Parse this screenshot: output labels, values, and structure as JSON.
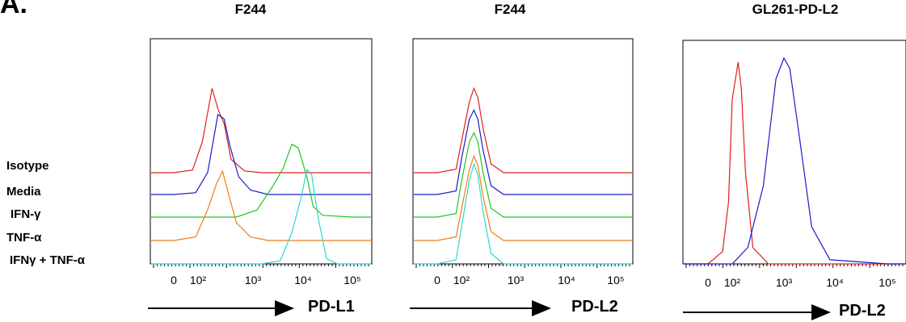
{
  "panel_label": "A.",
  "legend": [
    "Isotype",
    "Media",
    "IFN-γ",
    "TNF-α",
    "IFNγ + TNF-α"
  ],
  "colors": {
    "isotype": "#e0201c",
    "media": "#1a1acc",
    "ifng": "#22c422",
    "tnfa": "#ee7d16",
    "ifng_tnfa": "#2fd8d2",
    "axis": "#000000"
  },
  "chart_data": [
    {
      "type": "line",
      "title": "F244",
      "xlabel": "PD-L1",
      "x_scale": "log",
      "x_tick_labels": [
        "0",
        "10²",
        "10³",
        "10⁴",
        "10⁵"
      ],
      "grid": false,
      "series": [
        {
          "name": "Isotype",
          "x": [
            10,
            60,
            120,
            180,
            230,
            300,
            400,
            700,
            1500,
            100000
          ],
          "y": [
            0,
            0.03,
            0.35,
            0.95,
            0.72,
            0.55,
            0.15,
            0.02,
            0,
            0
          ]
        },
        {
          "name": "Media",
          "x": [
            10,
            80,
            150,
            230,
            300,
            380,
            550,
            900,
            2000,
            100000
          ],
          "y": [
            0,
            0.02,
            0.25,
            0.9,
            0.85,
            0.55,
            0.2,
            0.05,
            0,
            0
          ]
        },
        {
          "name": "IFN-γ",
          "x": [
            500,
            1200,
            2500,
            4000,
            6000,
            8000,
            12000,
            16000,
            25000,
            100000
          ],
          "y": [
            0,
            0.08,
            0.35,
            0.55,
            0.82,
            0.78,
            0.45,
            0.12,
            0.02,
            0
          ]
        },
        {
          "name": "TNF-α",
          "x": [
            10,
            80,
            150,
            220,
            280,
            350,
            500,
            900,
            2000,
            100000
          ],
          "y": [
            0,
            0.04,
            0.35,
            0.65,
            0.78,
            0.55,
            0.2,
            0.04,
            0,
            0
          ]
        },
        {
          "name": "IFNγ + TNF-α",
          "x": [
            1500,
            3500,
            6000,
            9000,
            12000,
            15000,
            20000,
            30000,
            50000,
            100000
          ],
          "y": [
            0,
            0.03,
            0.3,
            0.62,
            0.9,
            0.85,
            0.45,
            0.05,
            0,
            0
          ]
        }
      ]
    },
    {
      "type": "line",
      "title": "F244",
      "xlabel": "PD-L2",
      "x_scale": "log",
      "x_tick_labels": [
        "0",
        "10²",
        "10³",
        "10⁴",
        "10⁵"
      ],
      "grid": false,
      "series": [
        {
          "name": "Isotype",
          "x": [
            10,
            60,
            100,
            140,
            170,
            200,
            250,
            350,
            600,
            100000
          ],
          "y": [
            0,
            0.04,
            0.35,
            0.8,
            0.95,
            0.85,
            0.5,
            0.1,
            0,
            0
          ]
        },
        {
          "name": "Media",
          "x": [
            10,
            60,
            100,
            140,
            170,
            200,
            250,
            350,
            600,
            100000
          ],
          "y": [
            0,
            0.04,
            0.4,
            0.85,
            0.95,
            0.85,
            0.5,
            0.1,
            0,
            0
          ]
        },
        {
          "name": "IFN-γ",
          "x": [
            10,
            60,
            100,
            140,
            170,
            200,
            250,
            350,
            600,
            100000
          ],
          "y": [
            0,
            0.04,
            0.4,
            0.85,
            0.95,
            0.85,
            0.5,
            0.1,
            0,
            0
          ]
        },
        {
          "name": "TNF-α",
          "x": [
            10,
            60,
            100,
            140,
            170,
            200,
            250,
            350,
            600,
            100000
          ],
          "y": [
            0,
            0.04,
            0.35,
            0.8,
            0.95,
            0.85,
            0.5,
            0.1,
            0,
            0
          ]
        },
        {
          "name": "IFNγ + TNF-α",
          "x": [
            10,
            60,
            100,
            140,
            170,
            200,
            250,
            350,
            600,
            100000
          ],
          "y": [
            0,
            0.04,
            0.35,
            0.8,
            0.95,
            0.85,
            0.5,
            0.1,
            0,
            0
          ]
        }
      ]
    },
    {
      "type": "line",
      "title": "GL261-PD-L2",
      "xlabel": "PD-L2",
      "x_scale": "log",
      "x_tick_labels": [
        "0",
        "10²",
        "10³",
        "10⁴",
        "10⁵"
      ],
      "grid": false,
      "series": [
        {
          "name": "Isotype",
          "x": [
            10,
            40,
            70,
            100,
            130,
            150,
            180,
            250,
            500,
            100000
          ],
          "y": [
            0,
            0.06,
            0.3,
            0.8,
            0.98,
            0.85,
            0.45,
            0.08,
            0,
            0
          ]
        },
        {
          "name": "PD-L2",
          "x": [
            100,
            200,
            400,
            700,
            1000,
            1300,
            2000,
            3500,
            8000,
            100000
          ],
          "y": [
            0,
            0.08,
            0.38,
            0.9,
            1.0,
            0.95,
            0.62,
            0.18,
            0.02,
            0
          ]
        }
      ]
    }
  ]
}
